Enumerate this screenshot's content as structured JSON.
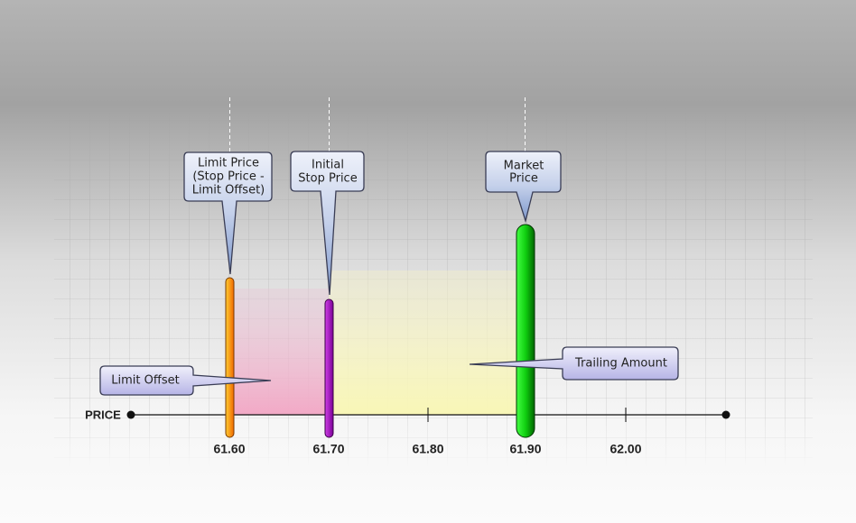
{
  "axis": {
    "label": "PRICE",
    "ticks": [
      "61.60",
      "61.70",
      "61.80",
      "61.90",
      "62.00"
    ]
  },
  "callouts": [
    {
      "lines": [
        "Limit Price",
        "(Stop Price -",
        "Limit Offset)"
      ]
    },
    {
      "lines": [
        "Initial",
        "Stop Price"
      ]
    },
    {
      "lines": [
        "Market",
        "Price"
      ]
    },
    {
      "lines": [
        "Limit Offset"
      ]
    },
    {
      "lines": [
        "Trailing Amount"
      ]
    }
  ]
}
